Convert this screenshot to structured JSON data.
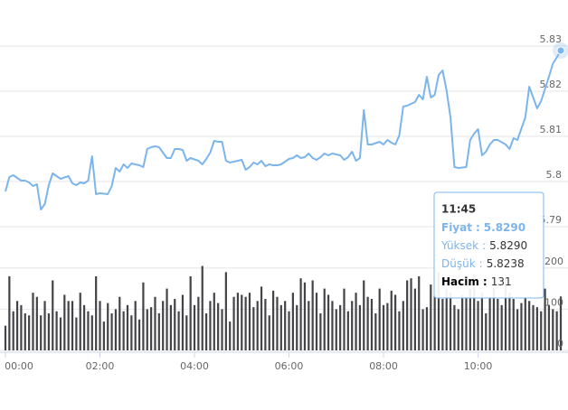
{
  "chart_data": {
    "type": "line",
    "x": [
      0,
      5,
      10,
      15,
      20,
      25,
      30,
      35,
      40,
      45,
      50,
      55,
      60,
      65,
      70,
      75,
      80,
      85,
      90,
      95,
      100,
      105,
      110,
      115,
      120,
      125,
      130,
      135,
      140,
      145,
      150,
      155,
      160,
      165,
      170,
      175,
      180,
      185,
      190,
      195,
      200,
      205,
      210,
      215,
      220,
      225,
      230,
      235,
      240,
      245,
      250,
      255,
      260,
      265,
      270,
      275,
      280,
      285,
      290,
      295,
      300,
      305,
      310,
      315,
      320,
      325,
      330,
      335,
      340,
      345,
      350,
      355,
      360,
      365,
      370,
      375,
      380,
      385,
      390,
      395,
      400,
      405,
      410,
      415,
      420,
      425,
      430,
      435,
      440,
      445,
      450,
      455,
      460,
      465,
      470,
      475,
      480,
      485,
      490,
      495,
      500,
      505,
      510,
      515,
      520,
      525,
      530,
      535,
      540,
      545,
      550,
      555,
      560,
      565,
      570,
      575,
      580,
      585,
      590,
      595,
      600,
      605,
      610,
      615,
      620,
      625,
      630,
      635,
      640,
      645,
      650,
      655,
      660,
      665,
      670,
      675,
      680,
      685,
      690,
      695,
      700,
      705
    ],
    "xlim": [
      0,
      705
    ],
    "xticks": [
      {
        "value": 0,
        "label": "00:00"
      },
      {
        "value": 120,
        "label": "02:00"
      },
      {
        "value": 240,
        "label": "04:00"
      },
      {
        "value": 360,
        "label": "06:00"
      },
      {
        "value": 480,
        "label": "08:00"
      },
      {
        "value": 600,
        "label": "10:00"
      }
    ],
    "ylim": [
      5.78,
      5.84
    ],
    "yticks": [
      5.79,
      5.8,
      5.81,
      5.82,
      5.83
    ],
    "y2lim": [
      0,
      250
    ],
    "y2ticks": [
      0,
      100,
      200
    ],
    "grid": true,
    "series": [
      {
        "type": "line",
        "color": "#7cb5ec",
        "values": [
          5.7978,
          5.801,
          5.8014,
          5.8008,
          5.8002,
          5.8002,
          5.7998,
          5.799,
          5.7994,
          5.7938,
          5.795,
          5.7992,
          5.8018,
          5.8012,
          5.8006,
          5.8009,
          5.8012,
          5.7996,
          5.7992,
          5.7998,
          5.7996,
          5.8002,
          5.8056,
          5.7972,
          5.7974,
          5.7973,
          5.7972,
          5.799,
          5.803,
          5.8022,
          5.8038,
          5.803,
          5.804,
          5.8038,
          5.8036,
          5.8032,
          5.8072,
          5.8076,
          5.8078,
          5.8076,
          5.8064,
          5.8052,
          5.8052,
          5.8072,
          5.8072,
          5.807,
          5.8046,
          5.8052,
          5.8049,
          5.8046,
          5.8038,
          5.805,
          5.8064,
          5.809,
          5.8088,
          5.8088,
          5.8046,
          5.8042,
          5.8044,
          5.8046,
          5.8048,
          5.8026,
          5.8032,
          5.8042,
          5.8038,
          5.8046,
          5.8034,
          5.8038,
          5.8036,
          5.8036,
          5.8038,
          5.8044,
          5.805,
          5.8052,
          5.8058,
          5.8052,
          5.8054,
          5.8062,
          5.8052,
          5.8048,
          5.8054,
          5.8062,
          5.8058,
          5.8062,
          5.806,
          5.8058,
          5.8048,
          5.8054,
          5.8066,
          5.8046,
          5.8052,
          5.8158,
          5.8082,
          5.8082,
          5.8085,
          5.8088,
          5.8082,
          5.8092,
          5.8086,
          5.8082,
          5.8102,
          5.8166,
          5.8168,
          5.8172,
          5.8176,
          5.8192,
          5.8182,
          5.8232,
          5.8186,
          5.8192,
          5.8236,
          5.8246,
          5.8202,
          5.8142,
          5.8032,
          5.803,
          5.8031,
          5.8032,
          5.8092,
          5.8106,
          5.8116,
          5.8058,
          5.8066,
          5.8082,
          5.8092,
          5.8092,
          5.8087,
          5.8082,
          5.8072,
          5.8096,
          5.8092,
          5.8117,
          5.8142,
          5.821,
          5.8186,
          5.8162,
          5.8178,
          5.8205,
          5.8232,
          5.8261,
          5.8275,
          5.829
        ]
      },
      {
        "type": "bar",
        "axis": "y2",
        "color": "#434348",
        "values": [
          60,
          180,
          95,
          120,
          110,
          90,
          85,
          140,
          130,
          85,
          120,
          90,
          170,
          95,
          80,
          135,
          120,
          120,
          80,
          140,
          110,
          95,
          85,
          180,
          120,
          70,
          115,
          90,
          100,
          130,
          95,
          110,
          85,
          120,
          75,
          165,
          100,
          105,
          130,
          90,
          120,
          150,
          110,
          125,
          95,
          135,
          85,
          180,
          110,
          130,
          205,
          90,
          120,
          140,
          115,
          100,
          190,
          70,
          130,
          140,
          135,
          130,
          140,
          105,
          120,
          155,
          125,
          85,
          145,
          130,
          110,
          120,
          95,
          140,
          110,
          175,
          165,
          120,
          170,
          140,
          90,
          150,
          135,
          120,
          100,
          110,
          150,
          95,
          120,
          140,
          110,
          170,
          130,
          125,
          90,
          150,
          110,
          115,
          145,
          135,
          95,
          120,
          170,
          175,
          150,
          180,
          100,
          105,
          160,
          135,
          190,
          125,
          150,
          140,
          110,
          100,
          135,
          130,
          150,
          185,
          120,
          140,
          90,
          130,
          150,
          125,
          110,
          175,
          140,
          125,
          100,
          115,
          130,
          120,
          110,
          105,
          95,
          150,
          110,
          100,
          95,
          131
        ]
      }
    ],
    "tooltip": {
      "title": "11:45",
      "separator": ":",
      "rows": [
        {
          "label": "Fiyat",
          "value": "5.8290"
        },
        {
          "label": "Yüksek",
          "value": "5.8290"
        },
        {
          "label": "Düşük",
          "value": "5.8238"
        },
        {
          "label": "Hacim",
          "value": "131"
        }
      ]
    }
  }
}
